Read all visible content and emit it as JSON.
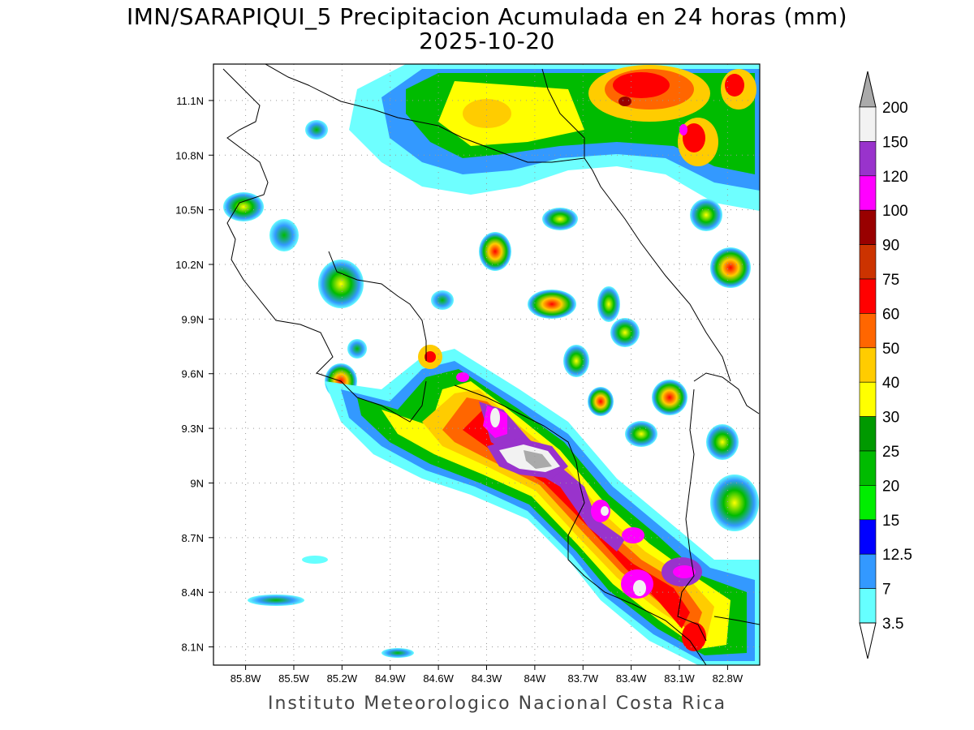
{
  "title": "IMN/SARAPIQUI_5 Precipitacion Acumulada en 24 horas (mm)",
  "date": "2025-10-20",
  "footer": "Instituto Meteorologico Nacional Costa Rica",
  "map": {
    "lon_range": [
      -86.0,
      -82.6
    ],
    "lat_range": [
      8.0,
      11.3
    ],
    "lon_ticks": [
      "85.8W",
      "85.5W",
      "85.2W",
      "84.9W",
      "84.6W",
      "84.3W",
      "84W",
      "83.7W",
      "83.4W",
      "83.1W",
      "82.8W"
    ],
    "lat_ticks": [
      "11.1N",
      "10.8N",
      "10.5N",
      "10.2N",
      "9.9N",
      "9.6N",
      "9.3N",
      "9N",
      "8.7N",
      "8.4N",
      "8.1N"
    ]
  },
  "colorbar": {
    "labels": [
      "200",
      "150",
      "120",
      "100",
      "90",
      "75",
      "60",
      "50",
      "40",
      "30",
      "25",
      "20",
      "15",
      "12.5",
      "7",
      "3.5"
    ],
    "colors": [
      "#f2f2f2",
      "#9933cc",
      "#ff00ff",
      "#990000",
      "#cc3300",
      "#ff0000",
      "#ff6600",
      "#ffcc00",
      "#ffff00",
      "#009900",
      "#00bb00",
      "#00ee00",
      "#0000ff",
      "#3399ff",
      "#66ffff"
    ],
    "over_color": "#aaaaaa",
    "under_color": "#ffffff"
  }
}
